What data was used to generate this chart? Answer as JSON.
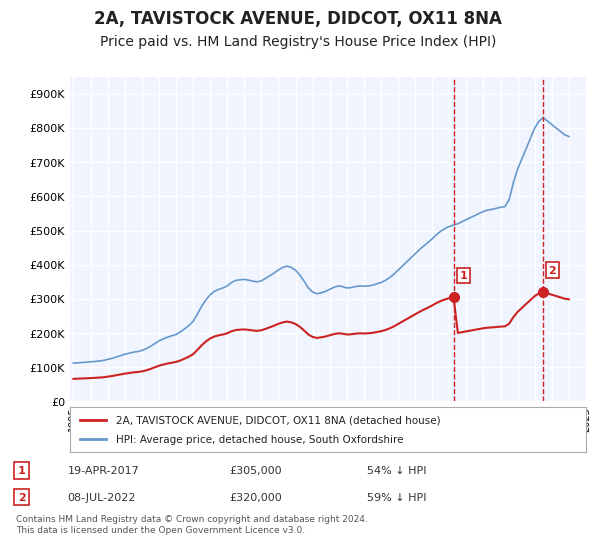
{
  "title": "2A, TAVISTOCK AVENUE, DIDCOT, OX11 8NA",
  "subtitle": "Price paid vs. HM Land Registry's House Price Index (HPI)",
  "title_fontsize": 12,
  "subtitle_fontsize": 10,
  "background_color": "#ffffff",
  "plot_bg_color": "#f0f4ff",
  "grid_color": "#ffffff",
  "hpi_color": "#6699cc",
  "price_color": "#cc2222",
  "marker_color_1": "#cc2222",
  "marker_color_2": "#cc2222",
  "sale1_date": "19-APR-2017",
  "sale1_price": 305000,
  "sale1_label": "£305,000",
  "sale1_pct": "54% ↓ HPI",
  "sale2_date": "08-JUL-2022",
  "sale2_price": 320000,
  "sale2_label": "£320,000",
  "sale2_pct": "59% ↓ HPI",
  "ylim": [
    0,
    950000
  ],
  "yticks": [
    0,
    100000,
    200000,
    300000,
    400000,
    500000,
    600000,
    700000,
    800000,
    900000
  ],
  "ytick_labels": [
    "£0",
    "£100K",
    "£200K",
    "£300K",
    "£400K",
    "£500K",
    "£600K",
    "£700K",
    "£800K",
    "£900K"
  ],
  "legend_label_price": "2A, TAVISTOCK AVENUE, DIDCOT, OX11 8NA (detached house)",
  "legend_label_hpi": "HPI: Average price, detached house, South Oxfordshire",
  "footer": "Contains HM Land Registry data © Crown copyright and database right 2024.\nThis data is licensed under the Open Government Licence v3.0.",
  "hpi_years": [
    1995.0,
    1995.25,
    1995.5,
    1995.75,
    1996.0,
    1996.25,
    1996.5,
    1996.75,
    1997.0,
    1997.25,
    1997.5,
    1997.75,
    1998.0,
    1998.25,
    1998.5,
    1998.75,
    1999.0,
    1999.25,
    1999.5,
    1999.75,
    2000.0,
    2000.25,
    2000.5,
    2000.75,
    2001.0,
    2001.25,
    2001.5,
    2001.75,
    2002.0,
    2002.25,
    2002.5,
    2002.75,
    2003.0,
    2003.25,
    2003.5,
    2003.75,
    2004.0,
    2004.25,
    2004.5,
    2004.75,
    2005.0,
    2005.25,
    2005.5,
    2005.75,
    2006.0,
    2006.25,
    2006.5,
    2006.75,
    2007.0,
    2007.25,
    2007.5,
    2007.75,
    2008.0,
    2008.25,
    2008.5,
    2008.75,
    2009.0,
    2009.25,
    2009.5,
    2009.75,
    2010.0,
    2010.25,
    2010.5,
    2010.75,
    2011.0,
    2011.25,
    2011.5,
    2011.75,
    2012.0,
    2012.25,
    2012.5,
    2012.75,
    2013.0,
    2013.25,
    2013.5,
    2013.75,
    2014.0,
    2014.25,
    2014.5,
    2014.75,
    2015.0,
    2015.25,
    2015.5,
    2015.75,
    2016.0,
    2016.25,
    2016.5,
    2016.75,
    2017.0,
    2017.25,
    2017.5,
    2017.75,
    2018.0,
    2018.25,
    2018.5,
    2018.75,
    2019.0,
    2019.25,
    2019.5,
    2019.75,
    2020.0,
    2020.25,
    2020.5,
    2020.75,
    2021.0,
    2021.25,
    2021.5,
    2021.75,
    2022.0,
    2022.25,
    2022.5,
    2022.75,
    2023.0,
    2023.25,
    2023.5,
    2023.75,
    2024.0
  ],
  "hpi_values": [
    112000,
    113000,
    114000,
    115000,
    116000,
    117000,
    118500,
    120000,
    123000,
    126000,
    130000,
    134000,
    138000,
    141000,
    144000,
    146000,
    149000,
    154000,
    161000,
    169000,
    177000,
    183000,
    188000,
    192000,
    196000,
    203000,
    212000,
    222000,
    234000,
    255000,
    278000,
    297000,
    312000,
    322000,
    328000,
    332000,
    338000,
    348000,
    354000,
    356000,
    357000,
    355000,
    352000,
    350000,
    353000,
    360000,
    368000,
    376000,
    385000,
    392000,
    396000,
    392000,
    384000,
    370000,
    352000,
    332000,
    320000,
    315000,
    318000,
    322000,
    328000,
    334000,
    338000,
    336000,
    332000,
    333000,
    336000,
    338000,
    337000,
    338000,
    340000,
    344000,
    348000,
    354000,
    362000,
    372000,
    384000,
    396000,
    408000,
    420000,
    432000,
    444000,
    455000,
    465000,
    476000,
    488000,
    498000,
    506000,
    512000,
    516000,
    520000,
    526000,
    532000,
    538000,
    544000,
    550000,
    556000,
    560000,
    562000,
    565000,
    568000,
    570000,
    590000,
    640000,
    680000,
    710000,
    740000,
    770000,
    800000,
    820000,
    830000,
    820000,
    810000,
    800000,
    790000,
    780000,
    775000
  ],
  "price_years": [
    2017.3,
    2022.5
  ],
  "price_values": [
    305000,
    320000
  ],
  "vline1_x": 2017.3,
  "vline2_x": 2022.5,
  "xmin": 1994.8,
  "xmax": 2025.0
}
